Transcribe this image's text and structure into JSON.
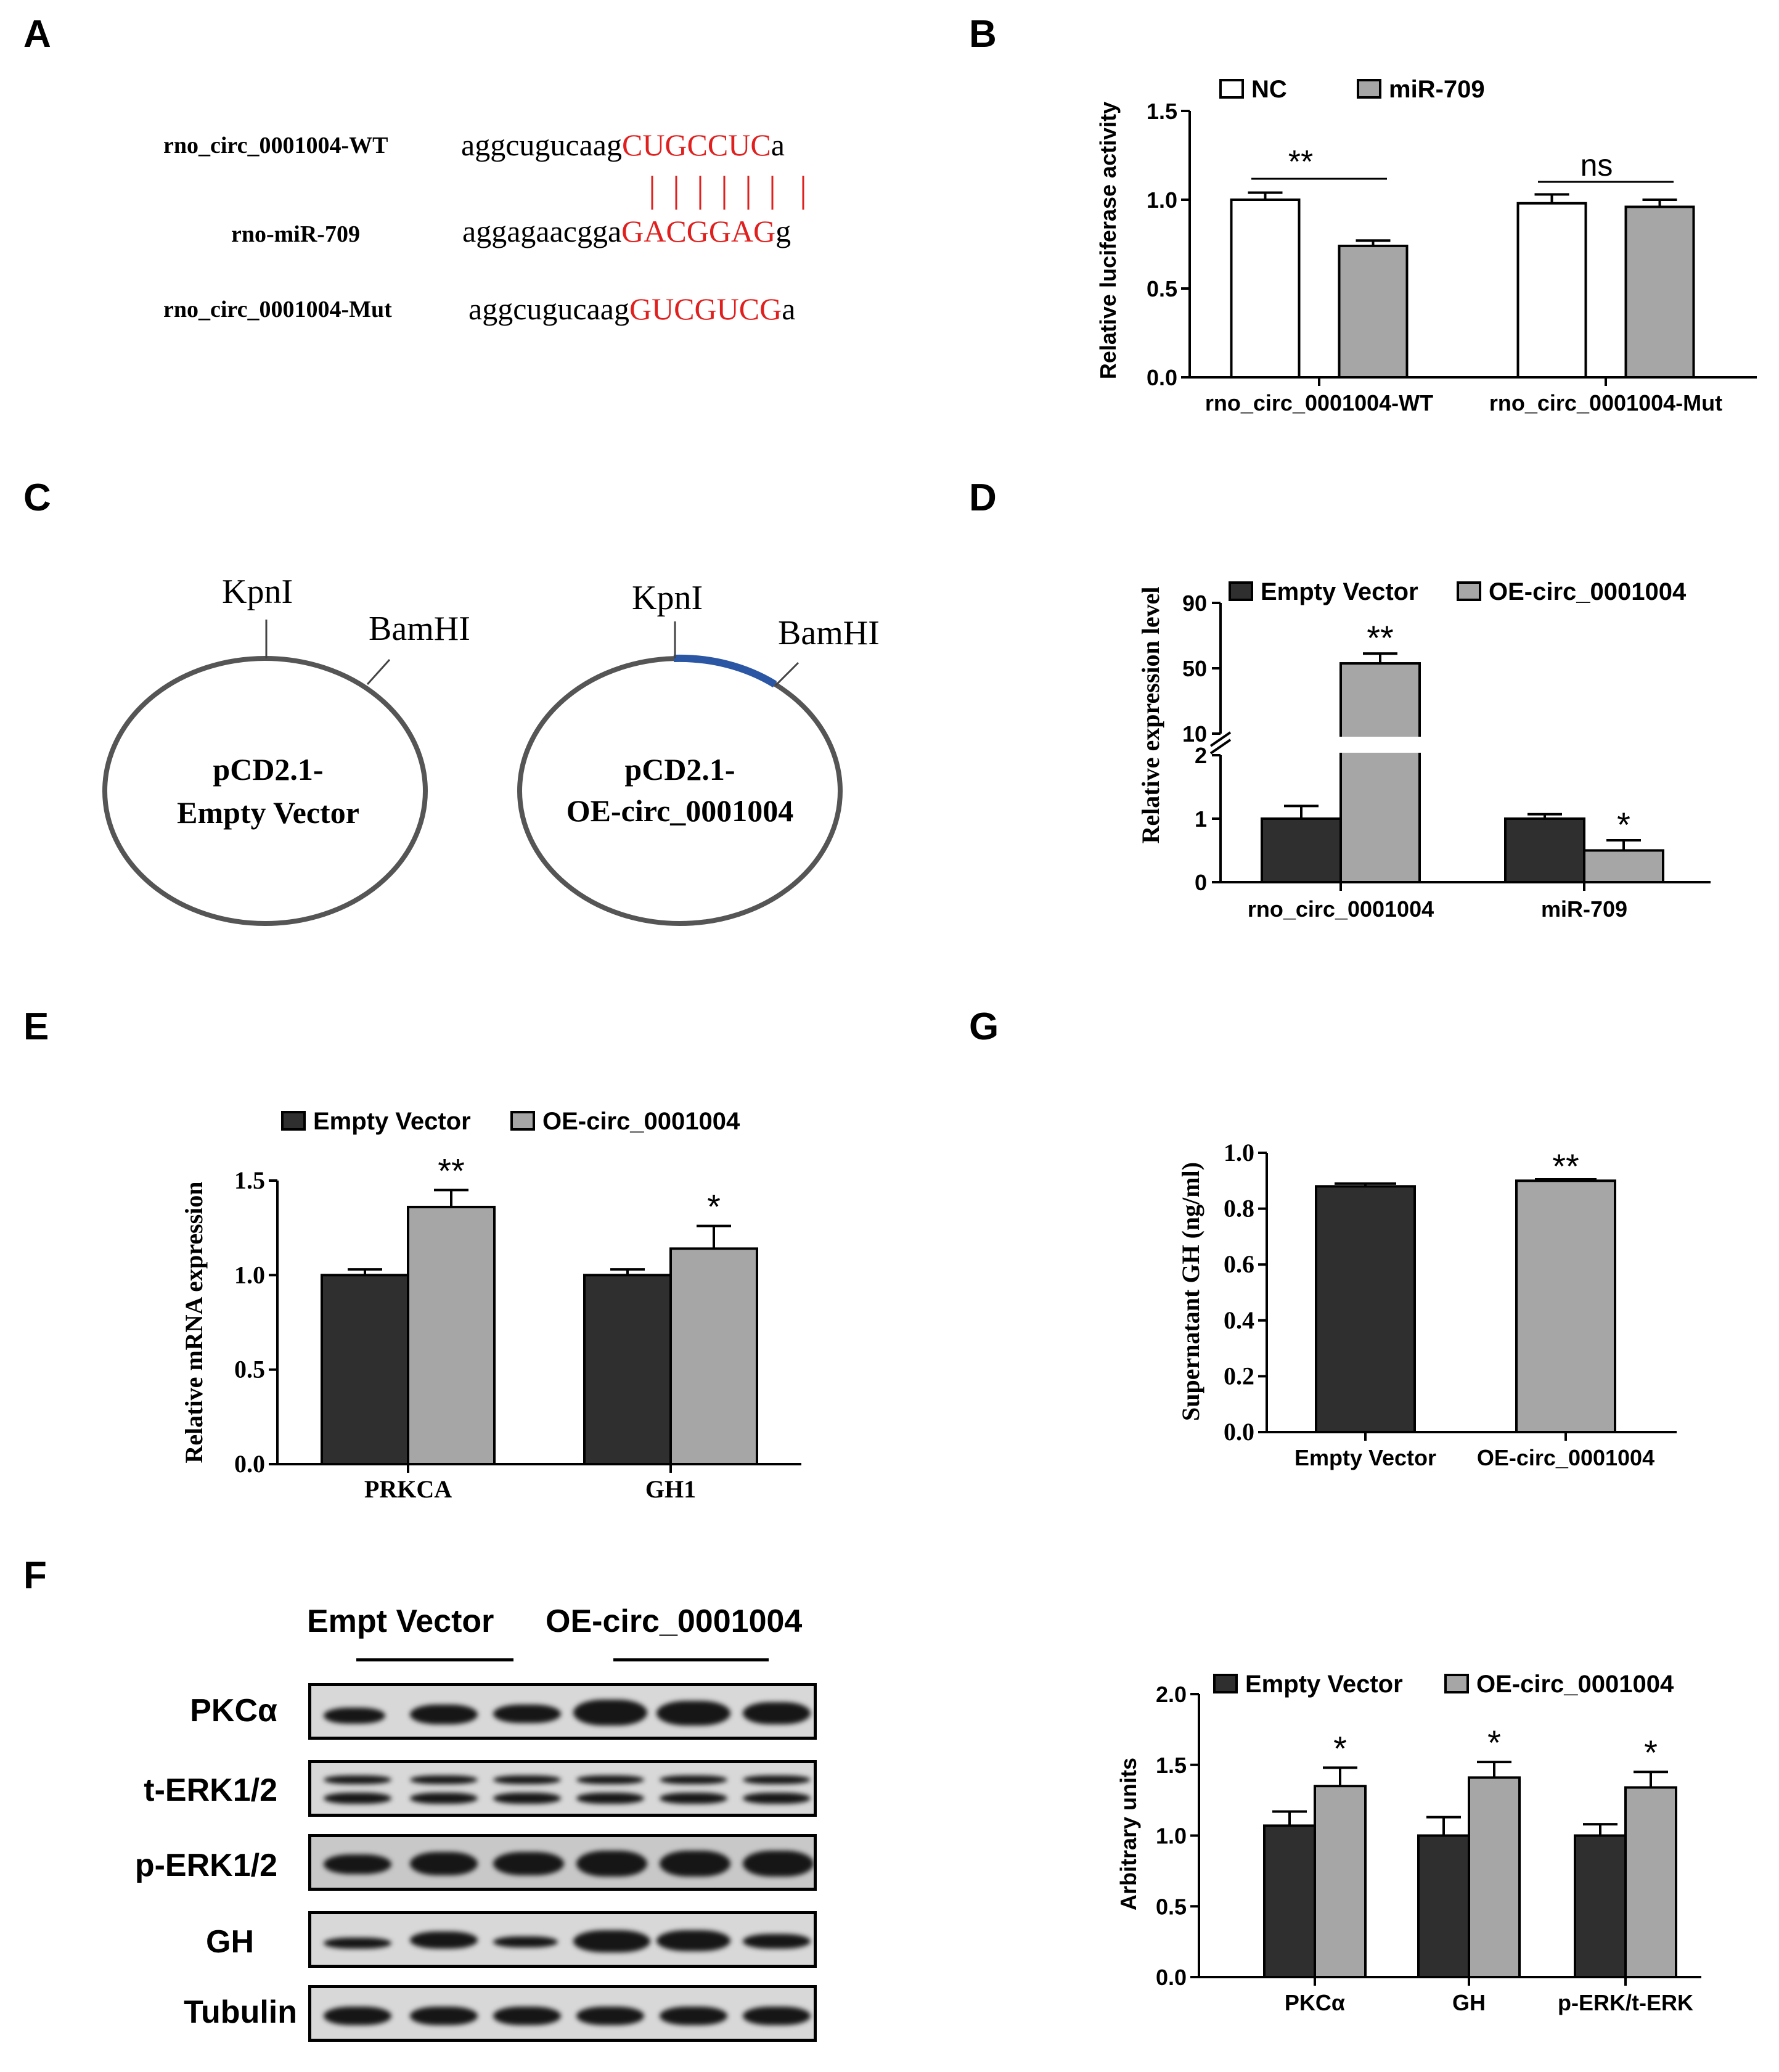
{
  "panels": [
    "A",
    "B",
    "C",
    "D",
    "E",
    "G",
    "F"
  ],
  "panelA": {
    "rows": [
      {
        "label": "rno_circ_0001004-WT",
        "prefix": "aggcugucaag",
        "seed": "CUGCCUC",
        "suffix": "a"
      },
      {
        "label": "rno-miR-709",
        "prefix": "aggagaacgga",
        "seed": "GACGGAG",
        "suffix": "g"
      },
      {
        "label": "rno_circ_0001004-Mut",
        "prefix": "aggcugucaag",
        "seed": "GUCGUCG",
        "suffix": "a"
      }
    ],
    "pairing_color": "#e0201e"
  },
  "panelC": {
    "plasmids": [
      {
        "name_line1": "pCD2.1-",
        "name_line2": "Empty Vector",
        "site1": "KpnI",
        "site2": "BamHI"
      },
      {
        "name_line1": "pCD2.1-",
        "name_line2": "OE-circ_0001004",
        "site1": "KpnI",
        "site2": "BamHI"
      }
    ],
    "insert_color": "#2a56a4"
  },
  "blot": {
    "header_left": "Empt Vector",
    "header_right": "OE-circ_0001004",
    "rows": [
      "PKCα",
      "t-ERK1/2",
      "p-ERK1/2",
      "GH",
      "Tubulin"
    ]
  },
  "chart_data": [
    {
      "id": "B",
      "type": "bar",
      "ylabel": "Relative luciferase activity",
      "ylim": [
        0,
        1.5
      ],
      "yticks": [
        "0.0",
        "0.5",
        "1.0",
        "1.5"
      ],
      "categories": [
        "rno_circ_0001004-WT",
        "rno_circ_0001004-Mut"
      ],
      "series": [
        {
          "name": "NC",
          "values": [
            1.0,
            0.98
          ],
          "errors": [
            0.04,
            0.05
          ],
          "color": "#ffffff"
        },
        {
          "name": "miR-709",
          "values": [
            0.74,
            0.96
          ],
          "errors": [
            0.03,
            0.04
          ],
          "color": "#a6a6a6"
        }
      ],
      "annotations": [
        "**",
        "ns"
      ]
    },
    {
      "id": "D",
      "type": "bar",
      "ylabel": "Relative expression level",
      "axis_break": "2 to 10",
      "yticks": [
        "0",
        "1",
        "2",
        "10",
        "50",
        "90"
      ],
      "categories": [
        "rno_circ_0001004",
        "miR-709"
      ],
      "series": [
        {
          "name": "Empty Vector",
          "values": [
            1.0,
            1.0
          ],
          "errors": [
            0.2,
            0.07
          ],
          "color": "#2f2f2f"
        },
        {
          "name": "OE-circ_0001004",
          "values": [
            53,
            0.5
          ],
          "errors": [
            6,
            0.16
          ],
          "color": "#a6a6a6"
        }
      ],
      "annotations": [
        "**",
        "*"
      ]
    },
    {
      "id": "E",
      "type": "bar",
      "ylabel": "Relative mRNA expression",
      "ylim": [
        0,
        1.5
      ],
      "yticks": [
        "0.0",
        "0.5",
        "1.0",
        "1.5"
      ],
      "categories": [
        "PRKCA",
        "GH1"
      ],
      "series": [
        {
          "name": "Empty Vector",
          "values": [
            1.0,
            1.0
          ],
          "errors": [
            0.03,
            0.03
          ],
          "color": "#2f2f2f"
        },
        {
          "name": "OE-circ_0001004",
          "values": [
            1.36,
            1.14
          ],
          "errors": [
            0.09,
            0.12
          ],
          "color": "#a6a6a6"
        }
      ],
      "annotations": [
        "**",
        "*"
      ]
    },
    {
      "id": "G",
      "type": "bar",
      "ylabel": "Supernatant GH (ng/ml)",
      "ylim": [
        0,
        1.0
      ],
      "yticks": [
        "0.0",
        "0.2",
        "0.4",
        "0.6",
        "0.8",
        "1.0"
      ],
      "categories": [
        "Empty Vector",
        "OE-circ_0001004"
      ],
      "values": [
        0.88,
        0.9
      ],
      "errors": [
        0.01,
        0.005
      ],
      "colors": [
        "#2f2f2f",
        "#a6a6a6"
      ],
      "annotations": [
        "",
        "**"
      ]
    },
    {
      "id": "F",
      "type": "bar",
      "ylabel": "Arbitrary units",
      "ylim": [
        0,
        2.0
      ],
      "yticks": [
        "0.0",
        "0.5",
        "1.0",
        "1.5",
        "2.0"
      ],
      "categories": [
        "PKCα",
        "GH",
        "p-ERK/t-ERK"
      ],
      "series": [
        {
          "name": "Empty Vector",
          "values": [
            1.07,
            1.0,
            1.0
          ],
          "errors": [
            0.1,
            0.13,
            0.08
          ],
          "color": "#2f2f2f"
        },
        {
          "name": "OE-circ_0001004",
          "values": [
            1.35,
            1.41,
            1.34
          ],
          "errors": [
            0.13,
            0.11,
            0.11
          ],
          "color": "#a6a6a6"
        }
      ],
      "annotations": [
        "*",
        "*",
        "*"
      ]
    }
  ]
}
